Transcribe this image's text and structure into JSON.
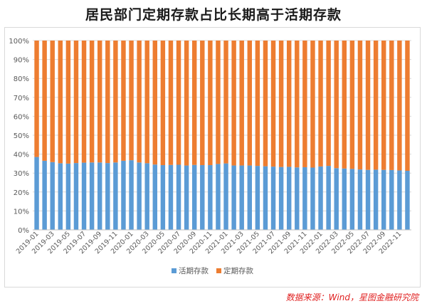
{
  "title": "居民部门定期存款占比长期高于活期存款",
  "source": "数据来源：Wind，星图金融研究院",
  "colors": {
    "demand": "#5b9bd5",
    "time": "#ed7d31",
    "grid": "#d9d9d9",
    "axis_text": "#595959"
  },
  "chart_data": {
    "type": "bar",
    "stacked": true,
    "percent_stacked": true,
    "categories": [
      "2019-01",
      "2019-02",
      "2019-03",
      "2019-04",
      "2019-05",
      "2019-06",
      "2019-07",
      "2019-08",
      "2019-09",
      "2019-10",
      "2019-11",
      "2019-12",
      "2020-01",
      "2020-02",
      "2020-03",
      "2020-04",
      "2020-05",
      "2020-06",
      "2020-07",
      "2020-08",
      "2020-09",
      "2020-10",
      "2020-11",
      "2020-12",
      "2021-01",
      "2021-02",
      "2021-03",
      "2021-04",
      "2021-05",
      "2021-06",
      "2021-07",
      "2021-08",
      "2021-09",
      "2021-10",
      "2021-11",
      "2021-12",
      "2022-01",
      "2022-02",
      "2022-03",
      "2022-04",
      "2022-05",
      "2022-06",
      "2022-07",
      "2022-08",
      "2022-09",
      "2022-10",
      "2022-11",
      "2022-12"
    ],
    "tick_labels": [
      "2019-01",
      "2019-03",
      "2019-05",
      "2019-07",
      "2019-09",
      "2019-11",
      "2020-01",
      "2020-03",
      "2020-05",
      "2020-07",
      "2020-09",
      "2020-11",
      "2021-01",
      "2021-03",
      "2021-05",
      "2021-07",
      "2021-09",
      "2021-11",
      "2022-01",
      "2022-03",
      "2022-05",
      "2022-07",
      "2022-09",
      "2022-11"
    ],
    "series": [
      {
        "name": "活期存款",
        "values": [
          38.5,
          36.5,
          35.8,
          35.2,
          35.0,
          35.3,
          35.5,
          35.6,
          35.6,
          35.3,
          35.6,
          36.5,
          36.8,
          35.6,
          35.2,
          34.5,
          34.2,
          34.3,
          34.4,
          34.0,
          34.3,
          34.2,
          34.2,
          34.8,
          35.1,
          34.0,
          34.0,
          34.0,
          33.8,
          33.6,
          33.4,
          33.2,
          33.3,
          33.0,
          33.1,
          32.9,
          33.5,
          33.8,
          32.6,
          32.4,
          32.2,
          31.9,
          31.7,
          31.8,
          31.7,
          31.6,
          31.4,
          31.2
        ]
      },
      {
        "name": "定期存款",
        "values": [
          61.5,
          63.5,
          64.2,
          64.8,
          65.0,
          64.7,
          64.5,
          64.4,
          64.4,
          64.7,
          64.4,
          63.5,
          63.2,
          64.4,
          64.8,
          65.5,
          65.8,
          65.7,
          65.6,
          66.0,
          65.7,
          65.8,
          65.8,
          65.2,
          64.9,
          66.0,
          66.0,
          66.0,
          66.2,
          66.4,
          66.6,
          66.8,
          66.7,
          67.0,
          66.9,
          67.1,
          66.5,
          66.2,
          67.4,
          67.6,
          67.8,
          68.1,
          68.3,
          68.2,
          68.3,
          68.4,
          68.6,
          68.8
        ]
      }
    ],
    "y_ticks": [
      "0%",
      "10%",
      "20%",
      "30%",
      "40%",
      "50%",
      "60%",
      "70%",
      "80%",
      "90%",
      "100%"
    ],
    "ylim": [
      0,
      100
    ],
    "grid": true,
    "legend_position": "bottom"
  }
}
